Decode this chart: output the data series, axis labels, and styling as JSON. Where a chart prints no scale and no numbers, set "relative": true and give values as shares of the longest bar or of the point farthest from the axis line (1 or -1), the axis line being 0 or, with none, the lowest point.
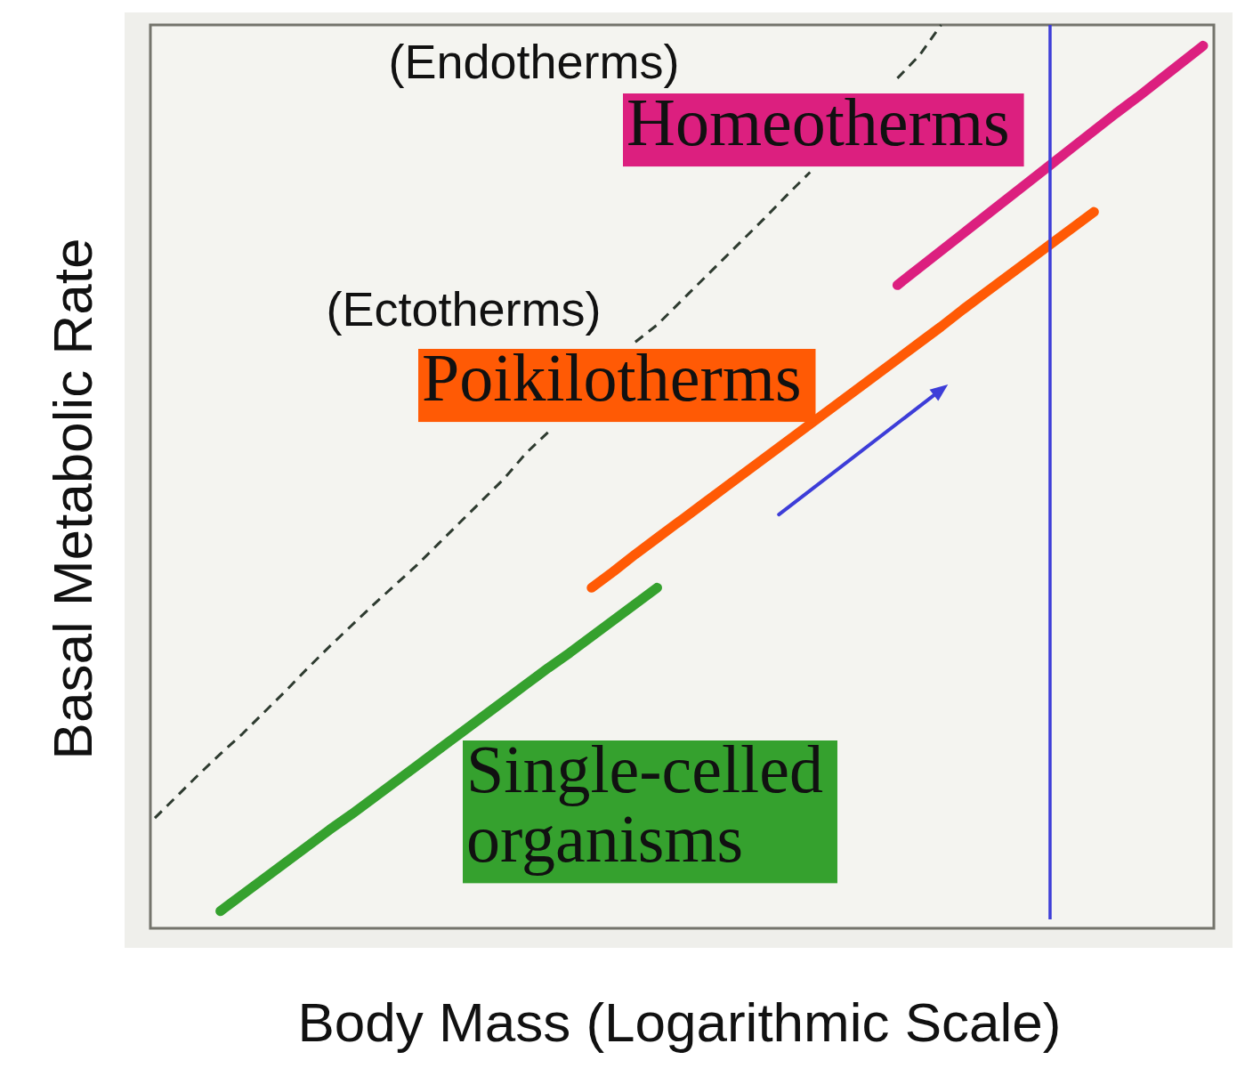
{
  "chart_data": {
    "type": "line",
    "relative": true,
    "xlabel": "Body Mass (Logarithmic Scale)",
    "ylabel": "Basal Metabolic Rate",
    "categories": [
      null,
      null,
      null,
      null,
      null,
      null,
      null,
      null,
      null,
      null,
      null,
      null,
      null,
      null,
      null,
      null,
      null,
      null,
      null,
      null,
      null,
      null,
      null,
      null,
      null,
      null,
      null,
      null,
      null,
      null,
      null,
      null,
      null,
      null,
      null,
      null,
      null,
      null,
      null,
      null,
      null,
      null,
      null,
      null,
      null,
      null,
      null,
      null,
      null
    ],
    "series": [
      {
        "name": "Single-celled organisms",
        "color": "#35a12e",
        "values": [
          null,
          null,
          null,
          0.019,
          0.037,
          0.055,
          0.073,
          0.091,
          0.109,
          0.126,
          0.144,
          0.162,
          0.18,
          0.198,
          0.216,
          0.234,
          0.252,
          0.27,
          0.288,
          0.305,
          0.323,
          0.341,
          0.359,
          0.377,
          null,
          null,
          null,
          null,
          null,
          null,
          null,
          null,
          null,
          null,
          null,
          null,
          null,
          null,
          null,
          null,
          null,
          null,
          null,
          null,
          null,
          null,
          null,
          null,
          null
        ]
      },
      {
        "name": "Poikilotherms",
        "color": "#ff5a05",
        "values": [
          null,
          null,
          null,
          null,
          null,
          null,
          null,
          null,
          null,
          null,
          null,
          null,
          null,
          null,
          null,
          null,
          null,
          null,
          null,
          null,
          0.377,
          0.395,
          0.414,
          0.432,
          0.45,
          0.468,
          0.486,
          0.504,
          0.522,
          0.54,
          0.558,
          0.576,
          0.594,
          0.612,
          0.63,
          0.648,
          0.666,
          0.685,
          0.703,
          0.721,
          0.739,
          0.757,
          0.775,
          0.793,
          null,
          null,
          null,
          null,
          null
        ]
      },
      {
        "name": "Homeotherms",
        "color": "#dc1f7f",
        "values": [
          null,
          null,
          null,
          null,
          null,
          null,
          null,
          null,
          null,
          null,
          null,
          null,
          null,
          null,
          null,
          null,
          null,
          null,
          null,
          null,
          null,
          null,
          null,
          null,
          null,
          null,
          null,
          null,
          null,
          null,
          null,
          null,
          null,
          null,
          0.712,
          0.731,
          0.75,
          0.769,
          0.788,
          0.807,
          0.826,
          0.845,
          0.864,
          0.883,
          0.902,
          0.92,
          0.939,
          0.958,
          0.977
        ]
      },
      {
        "color": "#2e3b30",
        "line_style": "dashed",
        "values": [
          0.122,
          0.146,
          0.17,
          0.193,
          0.215,
          0.239,
          0.263,
          0.288,
          0.312,
          0.335,
          0.358,
          0.38,
          0.402,
          0.426,
          0.45,
          0.474,
          0.498,
          0.526,
          0.549,
          null,
          null,
          null,
          0.649,
          0.668,
          0.692,
          0.716,
          0.74,
          0.764,
          0.788,
          0.813,
          0.837,
          null,
          null,
          null,
          0.941,
          0.966,
          1,
          null,
          null,
          null,
          null,
          null,
          null,
          null,
          null,
          null,
          null,
          null,
          null
        ]
      }
    ],
    "annotations": [
      "(Endotherms)",
      "(Ectotherms)"
    ]
  }
}
